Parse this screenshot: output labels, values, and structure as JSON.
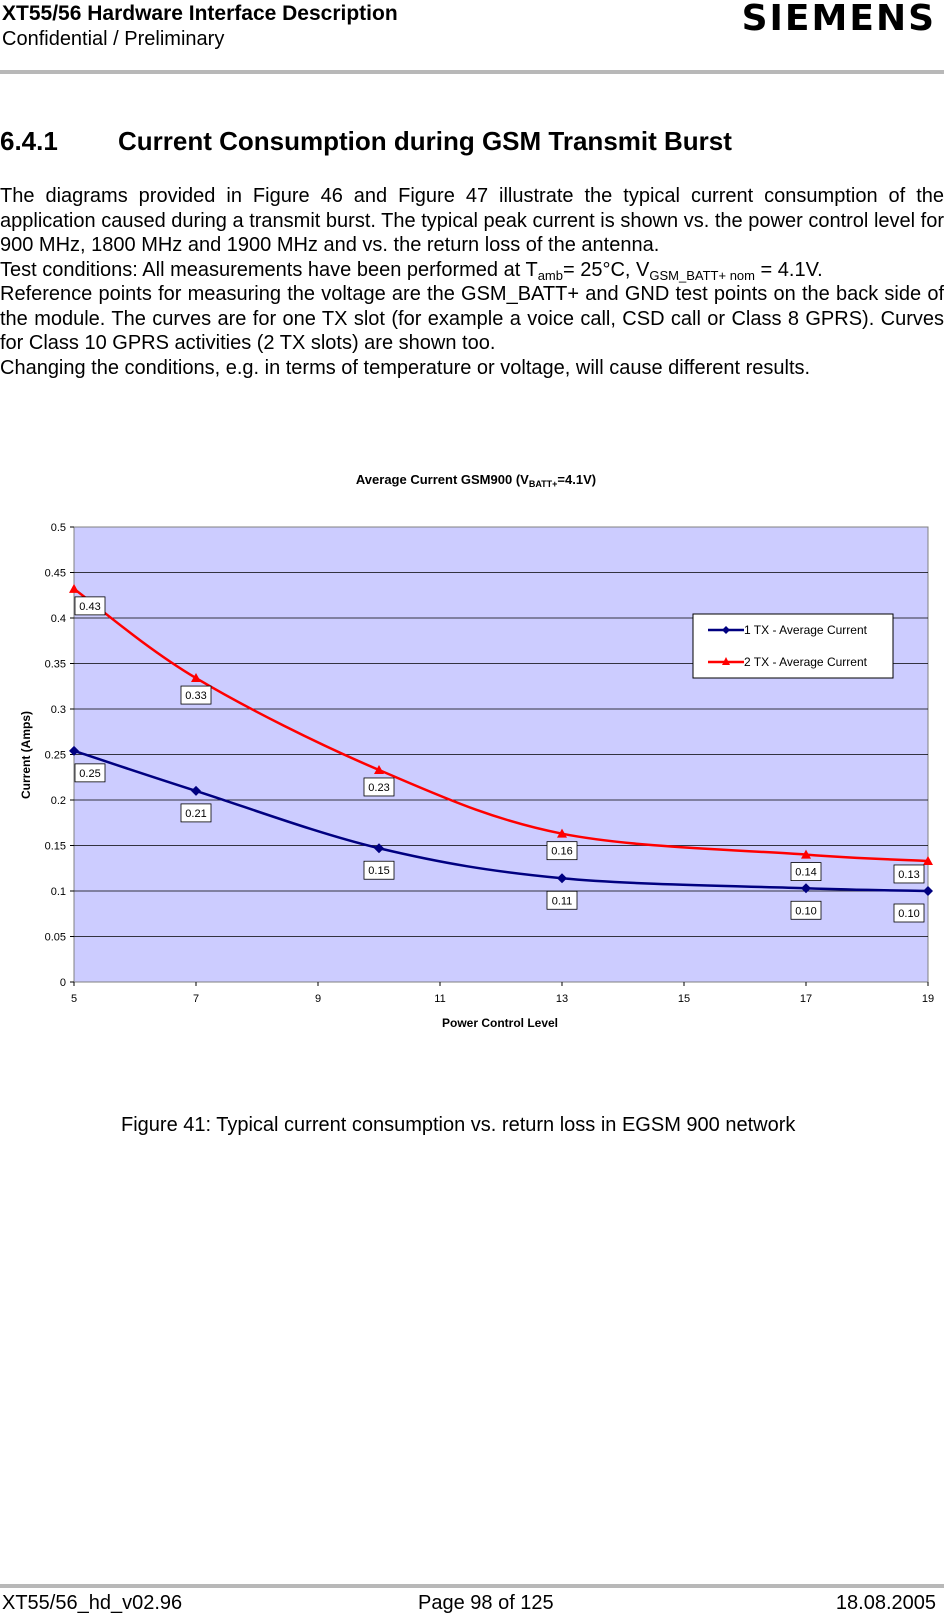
{
  "header": {
    "title": "XT55/56 Hardware Interface Description",
    "subtitle": "Confidential / Preliminary",
    "logo": "SIEMENS"
  },
  "section": {
    "number": "6.4.1",
    "title": "Current Consumption during GSM Transmit Burst"
  },
  "body": {
    "p1": "The diagrams provided in Figure 46 and Figure 47 illustrate the typical current consumption of the application caused during a transmit burst. The typical peak current is shown vs. the power control level for 900 MHz, 1800 MHz and 1900 MHz and vs. the return loss of the antenna.",
    "p2_a": "Test conditions: All measurements have been performed at T",
    "p2_sub1": "amb",
    "p2_b": "= 25°C, V",
    "p2_sub2": "GSM_BATT+ nom",
    "p2_c": " = 4.1V.",
    "p3": "Reference points for measuring the voltage are the GSM_BATT+ and GND test points on the back side of the module. The curves are for one TX slot (for example a voice call, CSD call or Class 8 GPRS). Curves for Class 10 GPRS activities (2 TX slots) are shown too.",
    "p4": "Changing the conditions, e.g. in terms of temperature or voltage, will cause different results."
  },
  "chart_data": {
    "type": "line",
    "title_main": "Average Current GSM900 (V",
    "title_sub": "BATT+",
    "title_end": "=4.1V)",
    "xlabel": "Power Control Level",
    "ylabel": "Current (Amps)",
    "xlim": [
      5,
      19
    ],
    "ylim": [
      0,
      0.5
    ],
    "xticks": [
      "5",
      "7",
      "9",
      "11",
      "13",
      "15",
      "17",
      "19"
    ],
    "yticks": [
      "0",
      "0.05",
      "0.1",
      "0.15",
      "0.2",
      "0.25",
      "0.3",
      "0.35",
      "0.4",
      "0.45",
      "0.5"
    ],
    "legend_position": "top-right",
    "grid": "horizontal",
    "series": [
      {
        "name": "1 TX - Average Current",
        "color": "#000080",
        "marker": "diamond",
        "x": [
          5,
          7,
          10,
          13,
          17,
          19
        ],
        "y": [
          0.254,
          0.21,
          0.147,
          0.114,
          0.103,
          0.1
        ],
        "labels": [
          "0.25",
          "0.21",
          "0.15",
          "0.11",
          "0.10",
          "0.10"
        ]
      },
      {
        "name": "2 TX - Average Current",
        "color": "#ff0000",
        "marker": "triangle",
        "x": [
          5,
          7,
          10,
          13,
          17,
          19
        ],
        "y": [
          0.432,
          0.334,
          0.233,
          0.163,
          0.14,
          0.133
        ],
        "labels": [
          "0.43",
          "0.33",
          "0.23",
          "0.16",
          "0.14",
          "0.13"
        ]
      }
    ]
  },
  "caption": "Figure 41: Typical current consumption vs. return loss in EGSM 900 network",
  "footer": {
    "left": "XT55/56_hd_v02.96",
    "center": "Page 98 of 125",
    "right": "18.08.2005"
  }
}
